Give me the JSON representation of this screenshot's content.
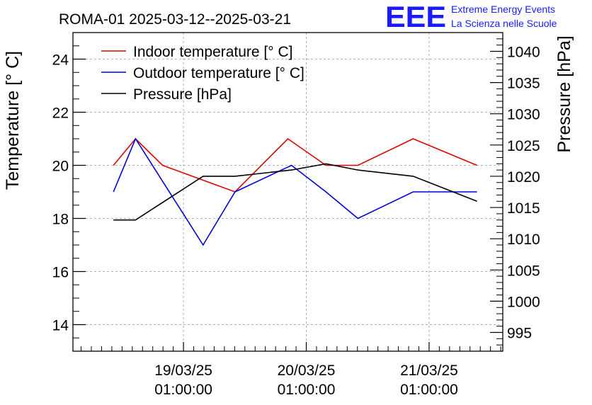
{
  "chart_data": {
    "type": "line",
    "title": "ROMA-01 2025-03-12--2025-03-21",
    "logo": {
      "mark": "EEE",
      "line1": "Extreme Energy Events",
      "line2": "La Scienza nelle Scuole",
      "color": "#1a1aff"
    },
    "ylabel_left": "Temperature [° C]",
    "ylabel_right": "Pressure [hPa]",
    "ylim_left": [
      13,
      25
    ],
    "ylim_right": [
      992,
      1043
    ],
    "xlim": [
      -0.9,
      2.6
    ],
    "yticks_left": [
      "14",
      "16",
      "18",
      "20",
      "22",
      "24"
    ],
    "yticks_right": [
      "995",
      "1000",
      "1005",
      "1010",
      "1015",
      "1020",
      "1025",
      "1030",
      "1035",
      "1040"
    ],
    "x_tick_labels": [
      {
        "x": 0,
        "date": "19/03/25",
        "time": "01:00:00"
      },
      {
        "x": 1,
        "date": "20/03/25",
        "time": "01:00:00"
      },
      {
        "x": 2,
        "date": "21/03/25",
        "time": "01:00:00"
      }
    ],
    "grid": true,
    "legend_position": "top-left",
    "series": [
      {
        "name": "Indoor temperature [° C]",
        "axis": "left",
        "color": "#dd0000",
        "x": [
          -0.57,
          -0.39,
          -0.17,
          0.42,
          0.85,
          1.16,
          1.42,
          1.87,
          2.39
        ],
        "y": [
          20,
          21,
          20,
          19,
          21,
          20,
          20,
          21,
          20
        ]
      },
      {
        "name": "Outdoor temperature [° C]",
        "axis": "left",
        "color": "#0000dd",
        "x": [
          -0.57,
          -0.39,
          0.16,
          0.42,
          0.88,
          1.16,
          1.42,
          1.87,
          2.39
        ],
        "y": [
          19,
          21,
          17,
          19,
          20,
          19,
          18,
          19,
          19
        ]
      },
      {
        "name": "Pressure [hPa]",
        "axis": "right",
        "color": "#000000",
        "x": [
          -0.57,
          -0.39,
          0.16,
          0.42,
          0.88,
          1.16,
          1.42,
          1.87,
          2.39
        ],
        "y": [
          1013,
          1013,
          1020,
          1020,
          1021,
          1022,
          1021,
          1020,
          1016
        ]
      }
    ]
  }
}
